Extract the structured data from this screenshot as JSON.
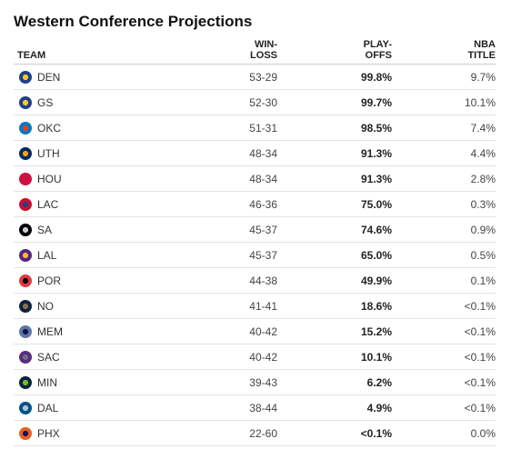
{
  "title": "Western Conference Projections",
  "headers": {
    "team": "TEAM",
    "winloss_1": "WIN-",
    "winloss_2": "LOSS",
    "playoffs_1": "PLAY-",
    "playoffs_2": "OFFS",
    "title_1": "NBA",
    "title_2": "TITLE"
  },
  "rows": [
    {
      "team": "DEN",
      "logo": "nuggets-logo-icon",
      "color": "#1d428a",
      "accent": "#fec524",
      "record": "53-29",
      "playoffs": "99.8%",
      "title": "9.7%"
    },
    {
      "team": "GS",
      "logo": "warriors-logo-icon",
      "color": "#1d428a",
      "accent": "#ffc72c",
      "record": "52-30",
      "playoffs": "99.7%",
      "title": "10.1%"
    },
    {
      "team": "OKC",
      "logo": "thunder-logo-icon",
      "color": "#007ac1",
      "accent": "#ef3b24",
      "record": "51-31",
      "playoffs": "98.5%",
      "title": "7.4%"
    },
    {
      "team": "UTH",
      "logo": "jazz-logo-icon",
      "color": "#002b5c",
      "accent": "#f9a01b",
      "record": "48-34",
      "playoffs": "91.3%",
      "title": "4.4%"
    },
    {
      "team": "HOU",
      "logo": "rockets-logo-icon",
      "color": "#ce1141",
      "accent": "#ce1141",
      "record": "48-34",
      "playoffs": "91.3%",
      "title": "2.8%"
    },
    {
      "team": "LAC",
      "logo": "clippers-logo-icon",
      "color": "#c8102e",
      "accent": "#1d428a",
      "record": "46-36",
      "playoffs": "75.0%",
      "title": "0.3%"
    },
    {
      "team": "SA",
      "logo": "spurs-logo-icon",
      "color": "#000000",
      "accent": "#c4ced4",
      "record": "45-37",
      "playoffs": "74.6%",
      "title": "0.9%"
    },
    {
      "team": "LAL",
      "logo": "lakers-logo-icon",
      "color": "#552583",
      "accent": "#fdb927",
      "record": "45-37",
      "playoffs": "65.0%",
      "title": "0.5%"
    },
    {
      "team": "POR",
      "logo": "blazers-logo-icon",
      "color": "#e03a3e",
      "accent": "#000000",
      "record": "44-38",
      "playoffs": "49.9%",
      "title": "0.1%"
    },
    {
      "team": "NO",
      "logo": "pelicans-logo-icon",
      "color": "#0c2340",
      "accent": "#85714d",
      "record": "41-41",
      "playoffs": "18.6%",
      "title": "<0.1%"
    },
    {
      "team": "MEM",
      "logo": "grizzlies-logo-icon",
      "color": "#5d76a9",
      "accent": "#12173f",
      "record": "40-42",
      "playoffs": "15.2%",
      "title": "<0.1%"
    },
    {
      "team": "SAC",
      "logo": "kings-logo-icon",
      "color": "#5a2d81",
      "accent": "#63727a",
      "record": "40-42",
      "playoffs": "10.1%",
      "title": "<0.1%"
    },
    {
      "team": "MIN",
      "logo": "timberwolves-logo-icon",
      "color": "#0c2340",
      "accent": "#78be20",
      "record": "39-43",
      "playoffs": "6.2%",
      "title": "<0.1%"
    },
    {
      "team": "DAL",
      "logo": "mavericks-logo-icon",
      "color": "#00538c",
      "accent": "#b8c4ca",
      "record": "38-44",
      "playoffs": "4.9%",
      "title": "<0.1%"
    },
    {
      "team": "PHX",
      "logo": "suns-logo-icon",
      "color": "#e56020",
      "accent": "#1d1160",
      "record": "22-60",
      "playoffs": "<0.1%",
      "title": "0.0%"
    }
  ]
}
